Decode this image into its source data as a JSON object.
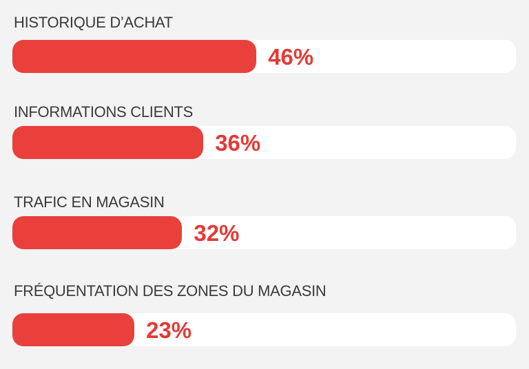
{
  "chart_data": {
    "type": "bar",
    "orientation": "horizontal",
    "categories": [
      "HISTORIQUE D’ACHAT",
      "INFORMATIONS CLIENTS",
      "TRAFIC EN MAGASIN",
      "FRÉQUENTATION DES ZONES DU MAGASIN"
    ],
    "values": [
      46,
      36,
      32,
      23
    ],
    "value_labels": [
      "46%",
      "36%",
      "32%",
      "23%"
    ],
    "unit": "%",
    "xlim": [
      0,
      100
    ],
    "grid": false,
    "legend": "none",
    "colors": {
      "bar": "#e9403c",
      "track": "#ffffff",
      "value_text": "#e53935",
      "label_text": "#3a3a3a",
      "background": "#f3f3f3"
    }
  }
}
